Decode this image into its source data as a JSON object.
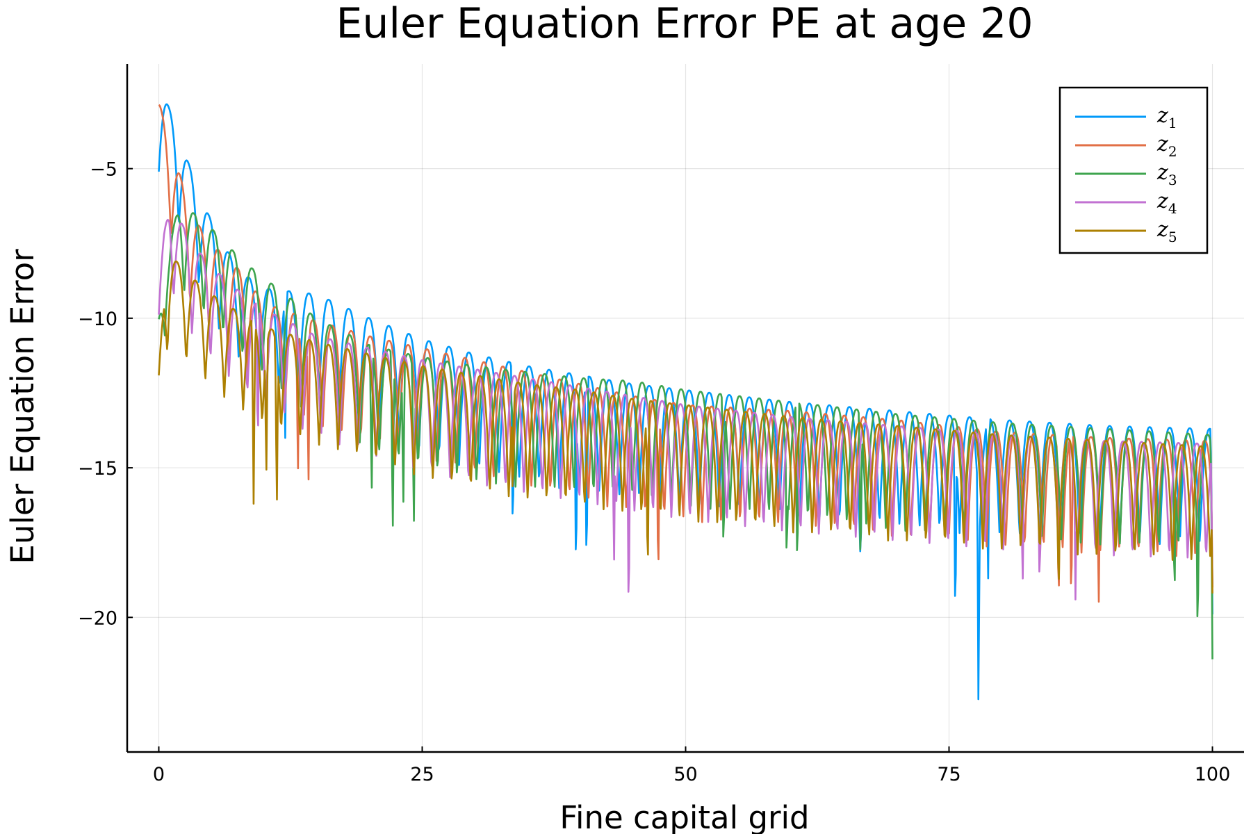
{
  "chart_data": {
    "type": "line",
    "title": "Euler Equation Error PE at age 20",
    "xlabel": "Fine capital grid",
    "ylabel": "Euler Equation Error",
    "xlim": [
      -3,
      103
    ],
    "ylim": [
      -24.5,
      -1.5
    ],
    "xticks": [
      0,
      25,
      50,
      75,
      100
    ],
    "xtick_labels": [
      "0",
      "25",
      "50",
      "75",
      "100"
    ],
    "yticks": [
      -5,
      -10,
      -15,
      -20
    ],
    "ytick_labels": [
      "−5",
      "−10",
      "−15",
      "−20"
    ],
    "grid": true,
    "legend_position": "top-right",
    "n_points_per_series": 101,
    "series": [
      {
        "name": "z1",
        "legend_base": "z",
        "legend_sub": "1",
        "color": "#009AFA",
        "envelope": [
          [
            0,
            -2.1
          ],
          [
            1,
            -3
          ],
          [
            2,
            -4
          ],
          [
            3,
            -5
          ],
          [
            4,
            -6
          ],
          [
            6,
            -7.5
          ],
          [
            8,
            -8.5
          ],
          [
            10,
            -9
          ],
          [
            15,
            -9.2
          ],
          [
            20,
            -10
          ],
          [
            25,
            -10.7
          ],
          [
            30,
            -11.2
          ],
          [
            35,
            -11.6
          ],
          [
            40,
            -11.9
          ],
          [
            45,
            -12.2
          ],
          [
            50,
            -12.4
          ],
          [
            60,
            -12.8
          ],
          [
            70,
            -13.1
          ],
          [
            80,
            -13.4
          ],
          [
            90,
            -13.6
          ],
          [
            100,
            -13.7
          ]
        ],
        "dips": [
          [
            12,
            -14.0
          ],
          [
            33.6,
            -17.8
          ],
          [
            39.6,
            -19.2
          ],
          [
            40.6,
            -19.0
          ],
          [
            66.6,
            -19.0
          ],
          [
            75.6,
            -20.8
          ],
          [
            77.8,
            -23.8
          ],
          [
            78.7,
            -19.3
          ],
          [
            100,
            -19.9
          ]
        ],
        "values": [
          -2.1,
          -10.5,
          -3.8,
          -11.0,
          -4.9,
          -11.5,
          -6.2,
          -12.0,
          -7.2,
          -12.6,
          -13.4,
          -9.0,
          -14.0,
          -9.1,
          -13.8,
          -9.3,
          -13.7,
          -9.6,
          -13.9,
          -9.9,
          -14.1,
          -10.0,
          -14.3,
          -10.2,
          -14.4,
          -10.6,
          -14.5,
          -10.8,
          -14.7,
          -11.0,
          -14.8,
          -11.1,
          -14.9,
          -11.3,
          -17.8,
          -11.4,
          -15.0,
          -11.6,
          -15.2,
          -19.2,
          -19.0,
          -11.8,
          -15.3,
          -12.0,
          -15.4,
          -12.1,
          -15.5,
          -12.2,
          -15.6,
          -12.3,
          -15.7,
          -12.4,
          -15.8,
          -12.5,
          -15.9,
          -12.6,
          -16.0,
          -12.6,
          -16.1,
          -12.7,
          -16.2,
          -12.8,
          -16.2,
          -12.9,
          -16.3,
          -12.9,
          -19.0,
          -13.0,
          -16.4,
          -13.1,
          -16.5,
          -13.1,
          -16.6,
          -13.2,
          -16.7,
          -20.8,
          -13.3,
          -23.8,
          -19.3,
          -13.4,
          -16.8,
          -13.4,
          -16.9,
          -13.5,
          -17.0,
          -13.5,
          -17.0,
          -13.6,
          -17.1,
          -13.6,
          -17.2,
          -13.6,
          -17.2,
          -13.7,
          -17.3,
          -13.7,
          -17.3,
          -13.7,
          -17.4,
          -13.7,
          -19.9
        ]
      },
      {
        "name": "z2",
        "legend_base": "z",
        "legend_sub": "2",
        "color": "#E26F46",
        "envelope": [
          [
            0,
            -2.7
          ],
          [
            1,
            -4.2
          ],
          [
            2,
            -5.2
          ],
          [
            3,
            -6.5
          ],
          [
            5,
            -7.5
          ],
          [
            8,
            -8.5
          ],
          [
            10,
            -9.5
          ],
          [
            15,
            -10.1
          ],
          [
            20,
            -10.6
          ],
          [
            25,
            -11.0
          ],
          [
            30,
            -11.4
          ],
          [
            35,
            -11.8
          ],
          [
            40,
            -12.2
          ],
          [
            45,
            -12.6
          ],
          [
            50,
            -12.9
          ],
          [
            60,
            -13.1
          ],
          [
            70,
            -13.4
          ],
          [
            80,
            -13.8
          ],
          [
            90,
            -14.0
          ],
          [
            100,
            -14.1
          ]
        ],
        "dips": [
          [
            13.2,
            -15.6
          ],
          [
            14.2,
            -16.0
          ],
          [
            47.4,
            -19.4
          ],
          [
            85.4,
            -20.2
          ],
          [
            86.6,
            -20.1
          ],
          [
            89.2,
            -20.1
          ],
          [
            100,
            -19.0
          ]
        ],
        "values": [
          -2.7,
          -9.6,
          -4.2,
          -10.5,
          -5.2,
          -11.2,
          -6.5,
          -11.8,
          -7.3,
          -12.4,
          -7.8,
          -12.9,
          -8.3,
          -13.6,
          -14.2,
          -15.6,
          -16.0,
          -9.9,
          -13.8,
          -10.1,
          -14.0,
          -10.3,
          -14.2,
          -10.4,
          -14.3,
          -10.6,
          -14.5,
          -10.8,
          -14.6,
          -11.0,
          -14.8,
          -11.2,
          -14.9,
          -11.3,
          -15.1,
          -11.5,
          -15.2,
          -11.6,
          -15.3,
          -11.8,
          -15.4,
          -11.9,
          -15.5,
          -12.1,
          -15.6,
          -12.2,
          -15.7,
          -19.4,
          -15.8,
          -12.5,
          -15.9,
          -12.7,
          -16.0,
          -12.8,
          -16.1,
          -12.9,
          -16.1,
          -13.0,
          -16.2,
          -13.0,
          -16.3,
          -13.1,
          -16.4,
          -13.2,
          -16.4,
          -13.3,
          -16.5,
          -13.4,
          -16.6,
          -13.4,
          -16.7,
          -13.5,
          -16.7,
          -13.6,
          -16.8,
          -13.7,
          -16.8,
          -13.7,
          -16.9,
          -13.8,
          -16.9,
          -13.8,
          -17.0,
          -13.9,
          -17.0,
          -20.2,
          -20.1,
          -14.0,
          -17.1,
          -20.1,
          -14.0,
          -17.2,
          -14.1,
          -17.2,
          -14.1,
          -17.3,
          -14.1,
          -17.3,
          -14.1,
          -17.4,
          -19.0
        ]
      },
      {
        "name": "z3",
        "legend_base": "z",
        "legend_sub": "3",
        "color": "#3EA44E",
        "envelope": [
          [
            0,
            -9.7
          ],
          [
            0.5,
            -7.7
          ],
          [
            1,
            -7.6
          ],
          [
            2,
            -6.0
          ],
          [
            3,
            -6.4
          ],
          [
            5,
            -7.0
          ],
          [
            8,
            -8.1
          ],
          [
            12,
            -9.2
          ],
          [
            15,
            -10.0
          ],
          [
            20,
            -10.9
          ],
          [
            25,
            -11.3
          ],
          [
            30,
            -11.6
          ],
          [
            35,
            -11.8
          ],
          [
            40,
            -12.0
          ],
          [
            45,
            -12.1
          ],
          [
            50,
            -12.4
          ],
          [
            60,
            -12.8
          ],
          [
            70,
            -13.2
          ],
          [
            80,
            -13.5
          ],
          [
            90,
            -13.7
          ],
          [
            100,
            -13.9
          ]
        ],
        "dips": [
          [
            20.2,
            -16.2
          ],
          [
            22.2,
            -17.6
          ],
          [
            23.2,
            -16.7
          ],
          [
            24.2,
            -17.4
          ],
          [
            53.6,
            -18.5
          ],
          [
            59.6,
            -18.9
          ],
          [
            60.6,
            -19.0
          ],
          [
            66.6,
            -18.9
          ],
          [
            96.4,
            -20.0
          ],
          [
            98.6,
            -21.5
          ],
          [
            100,
            -21.4
          ]
        ],
        "values": [
          -9.7,
          -7.6,
          -6.0,
          -10.0,
          -6.4,
          -10.5,
          -7.0,
          -11.2,
          -7.8,
          -11.8,
          -8.4,
          -12.3,
          -9.2,
          -12.9,
          -9.4,
          -13.4,
          -9.9,
          -13.6,
          -10.2,
          -13.9,
          -16.2,
          -10.9,
          -17.6,
          -16.7,
          -17.4,
          -11.3,
          -14.5,
          -11.4,
          -14.7,
          -11.5,
          -14.9,
          -11.6,
          -15.0,
          -11.7,
          -15.1,
          -11.8,
          -15.2,
          -11.9,
          -15.3,
          -12.0,
          -15.4,
          -12.0,
          -15.5,
          -12.1,
          -15.6,
          -12.1,
          -15.7,
          -12.2,
          -15.8,
          -12.3,
          -15.9,
          -12.4,
          -16.0,
          -18.5,
          -16.1,
          -12.6,
          -16.2,
          -12.7,
          -16.3,
          -18.9,
          -19.0,
          -12.9,
          -16.4,
          -13.0,
          -16.5,
          -13.1,
          -18.9,
          -13.2,
          -16.6,
          -13.2,
          -16.7,
          -13.3,
          -16.8,
          -13.3,
          -16.8,
          -13.4,
          -16.9,
          -13.4,
          -17.0,
          -13.5,
          -17.0,
          -13.5,
          -17.1,
          -13.6,
          -17.1,
          -13.6,
          -17.2,
          -13.7,
          -17.2,
          -13.7,
          -17.3,
          -13.8,
          -17.3,
          -13.8,
          -17.4,
          -13.8,
          -20.0,
          -13.9,
          -21.5,
          -13.9,
          -21.4
        ]
      },
      {
        "name": "z4",
        "legend_base": "z",
        "legend_sub": "4",
        "color": "#C271D2",
        "envelope": [
          [
            0,
            -9.0
          ],
          [
            0.5,
            -7.2
          ],
          [
            1,
            -6.1
          ],
          [
            2,
            -6.7
          ],
          [
            3,
            -7.4
          ],
          [
            5,
            -8.3
          ],
          [
            8,
            -9.2
          ],
          [
            10,
            -9.7
          ],
          [
            15,
            -10.6
          ],
          [
            20,
            -11.0
          ],
          [
            25,
            -11.4
          ],
          [
            30,
            -11.7
          ],
          [
            35,
            -12.0
          ],
          [
            40,
            -12.3
          ],
          [
            45,
            -12.6
          ],
          [
            50,
            -12.9
          ],
          [
            60,
            -13.3
          ],
          [
            70,
            -13.6
          ],
          [
            80,
            -13.9
          ],
          [
            90,
            -14.1
          ],
          [
            100,
            -14.2
          ]
        ],
        "dips": [
          [
            9.4,
            -14.6
          ],
          [
            43.2,
            -18.7
          ],
          [
            44.6,
            -20.8
          ],
          [
            82.0,
            -18.7
          ],
          [
            83.6,
            -19.6
          ],
          [
            87.0,
            -19.4
          ],
          [
            100,
            -18.9
          ]
        ],
        "values": [
          -9.0,
          -6.1,
          -10.2,
          -6.7,
          -10.9,
          -7.4,
          -11.6,
          -7.9,
          -12.4,
          -8.6,
          -14.6,
          -9.6,
          -13.2,
          -9.9,
          -13.4,
          -10.2,
          -13.6,
          -10.4,
          -13.8,
          -10.6,
          -14.0,
          -10.7,
          -14.2,
          -10.9,
          -14.3,
          -11.0,
          -14.5,
          -11.2,
          -14.6,
          -11.3,
          -14.8,
          -11.5,
          -14.9,
          -11.6,
          -15.0,
          -11.7,
          -15.1,
          -11.9,
          -15.2,
          -12.0,
          -15.3,
          -12.1,
          -15.4,
          -18.7,
          -20.8,
          -12.4,
          -15.6,
          -12.5,
          -15.7,
          -12.7,
          -15.8,
          -12.8,
          -15.9,
          -12.9,
          -16.0,
          -13.0,
          -16.1,
          -13.1,
          -16.2,
          -13.2,
          -16.2,
          -13.3,
          -16.3,
          -13.3,
          -16.4,
          -13.4,
          -16.5,
          -13.5,
          -16.5,
          -13.5,
          -16.6,
          -13.6,
          -16.7,
          -13.7,
          -16.7,
          -13.7,
          -16.8,
          -13.8,
          -16.8,
          -18.7,
          -19.6,
          -13.9,
          -16.9,
          -13.9,
          -19.4,
          -14.0,
          -17.0,
          -14.0,
          -17.1,
          -14.1,
          -17.1,
          -14.1,
          -17.2,
          -14.1,
          -17.2,
          -14.2,
          -17.3,
          -14.2,
          -18.9
        ]
      },
      {
        "name": "z5",
        "legend_base": "z",
        "legend_sub": "5",
        "color": "#AD8002",
        "envelope": [
          [
            0,
            -11.9
          ],
          [
            0.5,
            -8.6
          ],
          [
            1,
            -7.9
          ],
          [
            2,
            -8.2
          ],
          [
            3,
            -8.6
          ],
          [
            5,
            -9.2
          ],
          [
            8,
            -9.9
          ],
          [
            10,
            -10.3
          ],
          [
            15,
            -10.8
          ],
          [
            20,
            -11.2
          ],
          [
            25,
            -11.6
          ],
          [
            30,
            -11.9
          ],
          [
            35,
            -12.2
          ],
          [
            40,
            -12.4
          ],
          [
            45,
            -12.7
          ],
          [
            50,
            -12.9
          ],
          [
            60,
            -13.3
          ],
          [
            70,
            -13.6
          ],
          [
            80,
            -13.9
          ],
          [
            90,
            -14.1
          ],
          [
            100,
            -14.3
          ]
        ],
        "dips": [
          [
            9.0,
            -16.2
          ],
          [
            10.2,
            -15.6
          ],
          [
            11.2,
            -16.7
          ],
          [
            33.6,
            -16.5
          ],
          [
            46.4,
            -19.2
          ],
          [
            85.4,
            -19.9
          ],
          [
            100,
            -19.2
          ]
        ],
        "values": [
          -11.9,
          -7.9,
          -11.3,
          -8.2,
          -11.9,
          -8.6,
          -12.6,
          -9.0,
          -13.3,
          -9.5,
          -16.2,
          -15.6,
          -16.7,
          -10.5,
          -13.9,
          -10.7,
          -14.0,
          -10.8,
          -14.2,
          -11.0,
          -14.3,
          -11.1,
          -14.4,
          -11.3,
          -14.6,
          -11.4,
          -14.7,
          -11.6,
          -14.8,
          -11.7,
          -14.9,
          -11.8,
          -15.0,
          -16.5,
          -15.1,
          -12.1,
          -15.2,
          -12.2,
          -15.3,
          -12.3,
          -15.4,
          -12.4,
          -15.5,
          -12.5,
          -15.6,
          -12.7,
          -19.2,
          -12.8,
          -15.8,
          -12.9,
          -15.9,
          -13.0,
          -16.0,
          -13.1,
          -16.1,
          -13.2,
          -16.2,
          -13.2,
          -16.3,
          -13.3,
          -16.3,
          -13.4,
          -16.4,
          -13.5,
          -16.5,
          -13.5,
          -16.6,
          -13.6,
          -16.6,
          -13.7,
          -16.7,
          -13.7,
          -16.8,
          -13.8,
          -16.8,
          -13.8,
          -16.9,
          -13.9,
          -16.9,
          -14.0,
          -17.0,
          -14.0,
          -17.0,
          -14.1,
          -17.1,
          -19.9,
          -17.1,
          -14.1,
          -17.2,
          -14.2,
          -17.2,
          -14.2,
          -17.3,
          -14.2,
          -17.3,
          -14.3,
          -17.4,
          -14.3,
          -17.4,
          -14.3,
          -19.2
        ]
      }
    ]
  }
}
